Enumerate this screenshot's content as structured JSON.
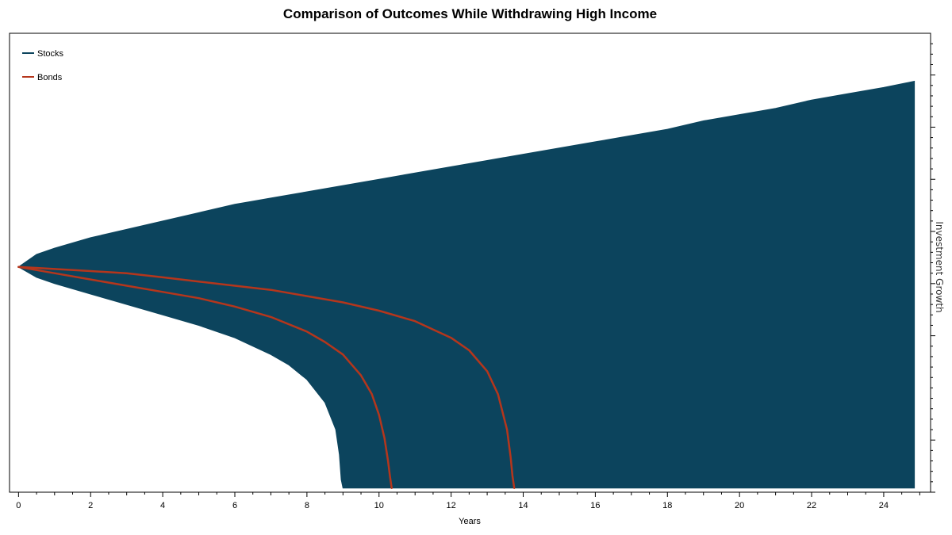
{
  "chart_data": {
    "type": "area",
    "title": "Comparison of Outcomes While Withdrawing High Income",
    "xlabel": "Years",
    "ylabel": "Investment Growth",
    "xlim": [
      -0.25,
      25.3
    ],
    "ylim": [
      0,
      2.2
    ],
    "x_ticks": [
      0,
      2,
      4,
      6,
      8,
      10,
      12,
      14,
      16,
      18,
      20,
      22,
      24
    ],
    "y_tick_labels_shown": false,
    "legend_position": "top-left",
    "series": [
      {
        "name": "Stocks",
        "kind": "band",
        "color": "#0c445d",
        "upper": {
          "x": [
            0,
            0.5,
            1,
            2,
            3,
            4,
            5,
            6,
            7,
            8,
            9,
            10,
            11,
            12,
            13,
            14,
            15,
            16,
            17,
            18,
            19,
            20,
            21,
            22,
            23,
            24,
            24.85
          ],
          "y": [
            1.08,
            1.14,
            1.17,
            1.22,
            1.26,
            1.3,
            1.34,
            1.38,
            1.41,
            1.44,
            1.47,
            1.5,
            1.53,
            1.56,
            1.59,
            1.62,
            1.65,
            1.68,
            1.71,
            1.74,
            1.78,
            1.81,
            1.84,
            1.88,
            1.91,
            1.94,
            1.97
          ]
        },
        "lower": {
          "x": [
            0,
            0.5,
            1,
            2,
            3,
            4,
            5,
            6,
            7,
            7.5,
            8,
            8.5,
            8.8,
            8.9,
            8.95,
            9.0,
            9.1
          ],
          "y": [
            1.08,
            1.03,
            1.0,
            0.95,
            0.9,
            0.85,
            0.8,
            0.74,
            0.66,
            0.61,
            0.54,
            0.43,
            0.3,
            0.18,
            0.06,
            0.02,
            0.02
          ]
        }
      },
      {
        "name": "Bonds",
        "kind": "lines",
        "color": "#b5361c",
        "lines": [
          {
            "x": [
              0,
              1,
              2,
              3,
              4,
              5,
              6,
              7,
              8,
              8.5,
              9,
              9.5,
              9.8,
              10.0,
              10.15,
              10.25,
              10.3,
              10.35
            ],
            "y": [
              1.08,
              1.05,
              1.02,
              0.99,
              0.96,
              0.93,
              0.89,
              0.84,
              0.77,
              0.72,
              0.66,
              0.56,
              0.47,
              0.37,
              0.26,
              0.15,
              0.08,
              0.02
            ]
          },
          {
            "x": [
              0,
              1,
              2,
              3,
              4,
              5,
              6,
              7,
              8,
              9,
              10,
              11,
              12,
              12.5,
              13,
              13.3,
              13.55,
              13.65,
              13.7,
              13.75
            ],
            "y": [
              1.08,
              1.07,
              1.06,
              1.05,
              1.03,
              1.01,
              0.99,
              0.97,
              0.94,
              0.91,
              0.87,
              0.82,
              0.74,
              0.68,
              0.58,
              0.47,
              0.3,
              0.17,
              0.08,
              0.02
            ]
          }
        ]
      }
    ]
  }
}
